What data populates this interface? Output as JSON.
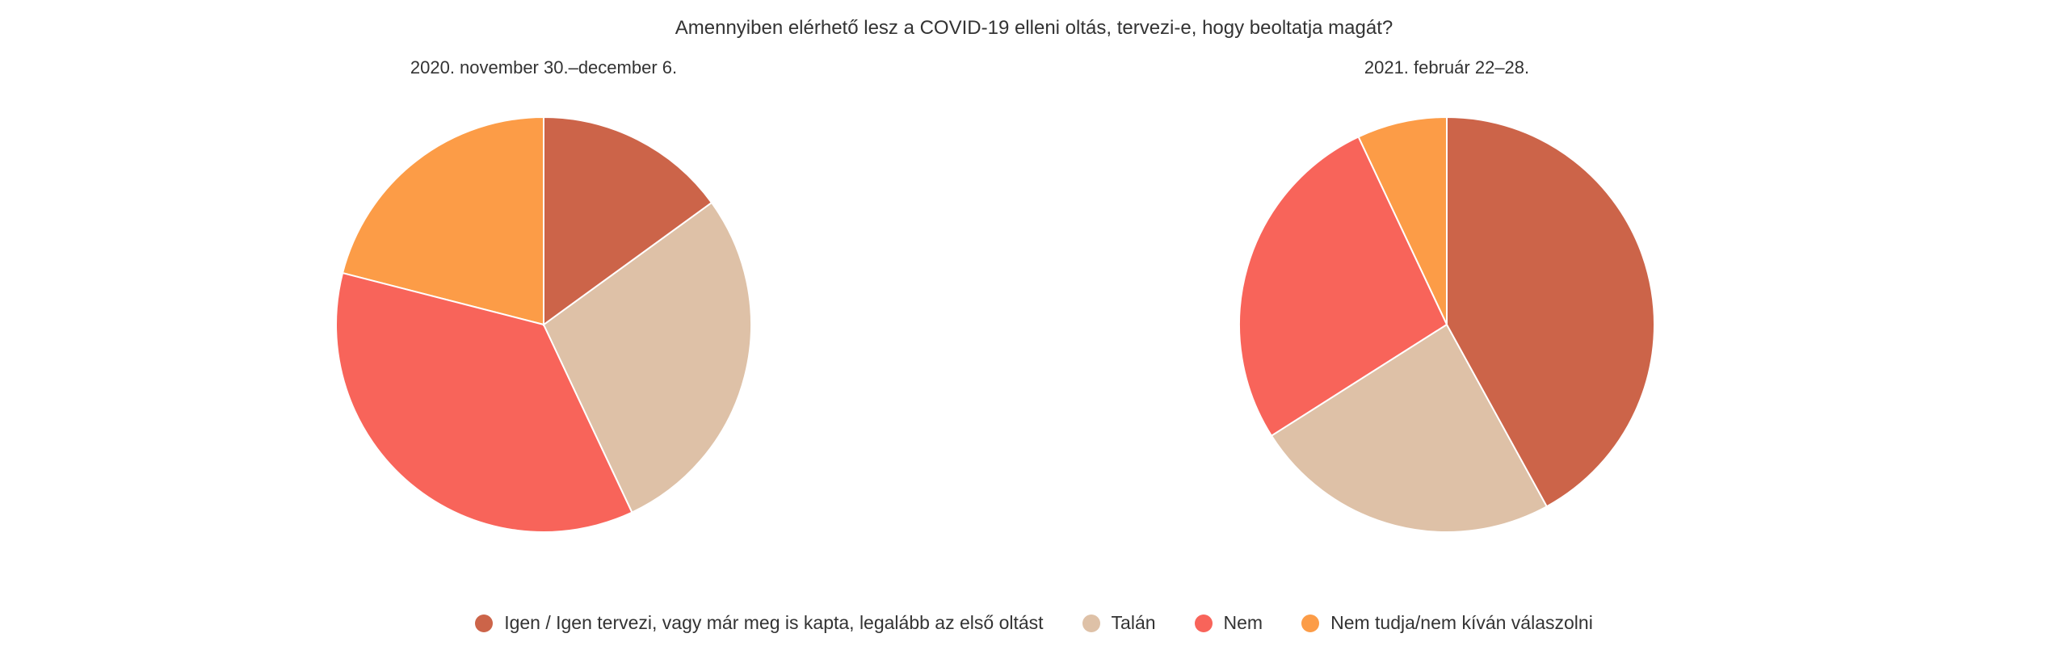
{
  "chart_data": {
    "type": "pie",
    "title": "Amennyiben elérhető lesz a COVID-19 elleni oltás, tervezi-e, hogy beoltatja magát?",
    "legend_position": "bottom",
    "categories": [
      "Igen / Igen tervezi, vagy már meg is kapta, legalább az első oltást",
      "Talán",
      "Nem",
      "Nem tudja/nem kíván válaszolni"
    ],
    "colors": [
      "#cc6449",
      "#dec1a7",
      "#f8645a",
      "#fc9c47"
    ],
    "pies": [
      {
        "subtitle": "2020. november 30.–december 6.",
        "values": [
          15,
          28,
          36,
          21
        ]
      },
      {
        "subtitle": "2021. február 22–28.",
        "values": [
          42,
          24,
          27,
          7
        ]
      }
    ]
  }
}
